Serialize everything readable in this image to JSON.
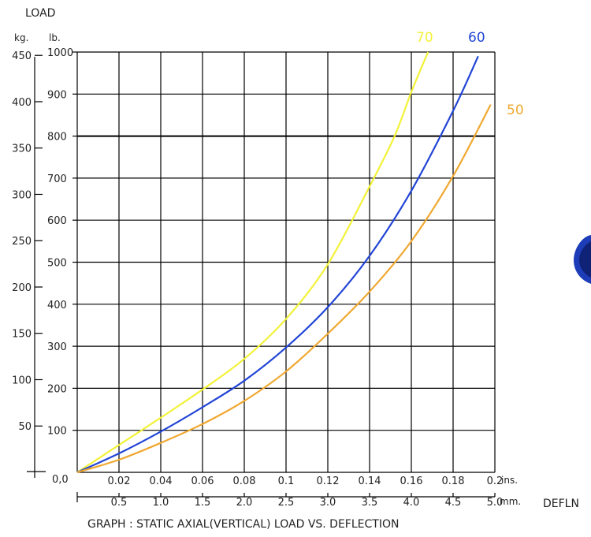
{
  "chart_data": {
    "type": "line",
    "title": "GRAPH : STATIC AXIAL(VERTICAL) LOAD VS. DEFLECTION",
    "ylabel": "LOAD",
    "xlabel": "DEFLN",
    "y_units": {
      "left": "kg.",
      "right": "lb."
    },
    "x_units": {
      "top": "ins.",
      "bottom": "mm."
    },
    "origin_label": "0,0",
    "xlim": [
      0,
      5.0
    ],
    "ylim": [
      0,
      1000
    ],
    "grid": true,
    "kg_ticks": [
      "50",
      "100",
      "150",
      "200",
      "250",
      "300",
      "350",
      "400",
      "450"
    ],
    "lb_ticks": [
      "100",
      "200",
      "300",
      "400",
      "500",
      "600",
      "700",
      "800",
      "900",
      "1000"
    ],
    "ins_ticks": [
      "0.02",
      "0.04",
      "0.06",
      "0.08",
      "0.1",
      "0.12",
      "0.14",
      "0.16",
      "0.18",
      "0.2"
    ],
    "mm_ticks": [
      "0.5",
      "1.0",
      "1.5",
      "2.0",
      "2.5",
      "3.0",
      "3.5",
      "4.0",
      "4.5",
      "5.0"
    ],
    "series": [
      {
        "name": "70",
        "color": "#f2f238",
        "x": [
          0,
          0.5,
          1.0,
          1.5,
          2.0,
          2.5,
          3.0,
          3.5,
          3.8,
          4.0,
          4.2
        ],
        "y": [
          0,
          65,
          130,
          197,
          270,
          365,
          495,
          680,
          800,
          905,
          1000
        ]
      },
      {
        "name": "60",
        "color": "#2245d6",
        "x": [
          0,
          0.5,
          1.0,
          1.5,
          2.0,
          2.5,
          3.0,
          3.5,
          4.0,
          4.5,
          4.8
        ],
        "y": [
          0,
          45,
          97,
          155,
          218,
          297,
          393,
          515,
          670,
          860,
          990
        ]
      },
      {
        "name": "50",
        "color": "#f0a830",
        "x": [
          0,
          0.5,
          1.0,
          1.5,
          2.0,
          2.5,
          3.0,
          3.5,
          4.0,
          4.5,
          4.95
        ],
        "y": [
          0,
          30,
          70,
          115,
          170,
          240,
          330,
          430,
          550,
          705,
          875
        ]
      }
    ]
  }
}
